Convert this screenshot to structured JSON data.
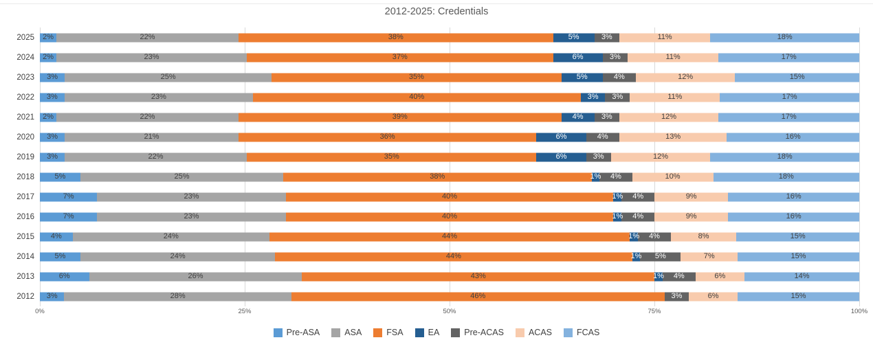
{
  "title": "2012-2025: Credentials",
  "chart_data": {
    "type": "bar",
    "variant": "100%-stacked-horizontal",
    "title": "2012-2025: Credentials",
    "categories": [
      "2025",
      "2024",
      "2023",
      "2022",
      "2021",
      "2020",
      "2019",
      "2018",
      "2017",
      "2016",
      "2015",
      "2014",
      "2013",
      "2012"
    ],
    "series": [
      {
        "name": "Pre-ASA",
        "color": "#5B9BD5",
        "label_color": "#404040",
        "values": [
          2,
          2,
          3,
          3,
          2,
          3,
          3,
          5,
          7,
          7,
          4,
          5,
          6,
          3
        ]
      },
      {
        "name": "ASA",
        "color": "#A5A5A5",
        "label_color": "#404040",
        "values": [
          22,
          23,
          25,
          23,
          22,
          21,
          22,
          25,
          23,
          23,
          24,
          24,
          26,
          28
        ]
      },
      {
        "name": "FSA",
        "color": "#ED7D31",
        "label_color": "#404040",
        "values": [
          38,
          37,
          35,
          40,
          39,
          36,
          35,
          38,
          40,
          40,
          44,
          44,
          43,
          46
        ]
      },
      {
        "name": "EA",
        "color": "#255E91",
        "label_color": "#FFFFFF",
        "values": [
          5,
          6,
          5,
          3,
          4,
          6,
          6,
          1,
          1,
          1,
          1,
          1,
          1,
          0
        ]
      },
      {
        "name": "Pre-ACAS",
        "color": "#636363",
        "label_color": "#FFFFFF",
        "values": [
          3,
          3,
          4,
          3,
          3,
          4,
          3,
          4,
          4,
          4,
          4,
          5,
          4,
          3
        ]
      },
      {
        "name": "ACAS",
        "color": "#F8CBAD",
        "label_color": "#404040",
        "values": [
          11,
          11,
          12,
          11,
          12,
          13,
          12,
          10,
          9,
          9,
          8,
          7,
          6,
          6
        ]
      },
      {
        "name": "FCAS",
        "color": "#84B2DE",
        "label_color": "#404040",
        "values": [
          18,
          17,
          15,
          17,
          17,
          16,
          18,
          18,
          16,
          16,
          15,
          15,
          14,
          15
        ]
      }
    ],
    "value_suffix": "%",
    "x_ticks": [
      "0%",
      "25%",
      "50%",
      "75%",
      "100%"
    ],
    "xlim": [
      0,
      100
    ],
    "grid": "vertical-major",
    "legend_position": "bottom",
    "gridline_color": "#D9D9D9"
  }
}
